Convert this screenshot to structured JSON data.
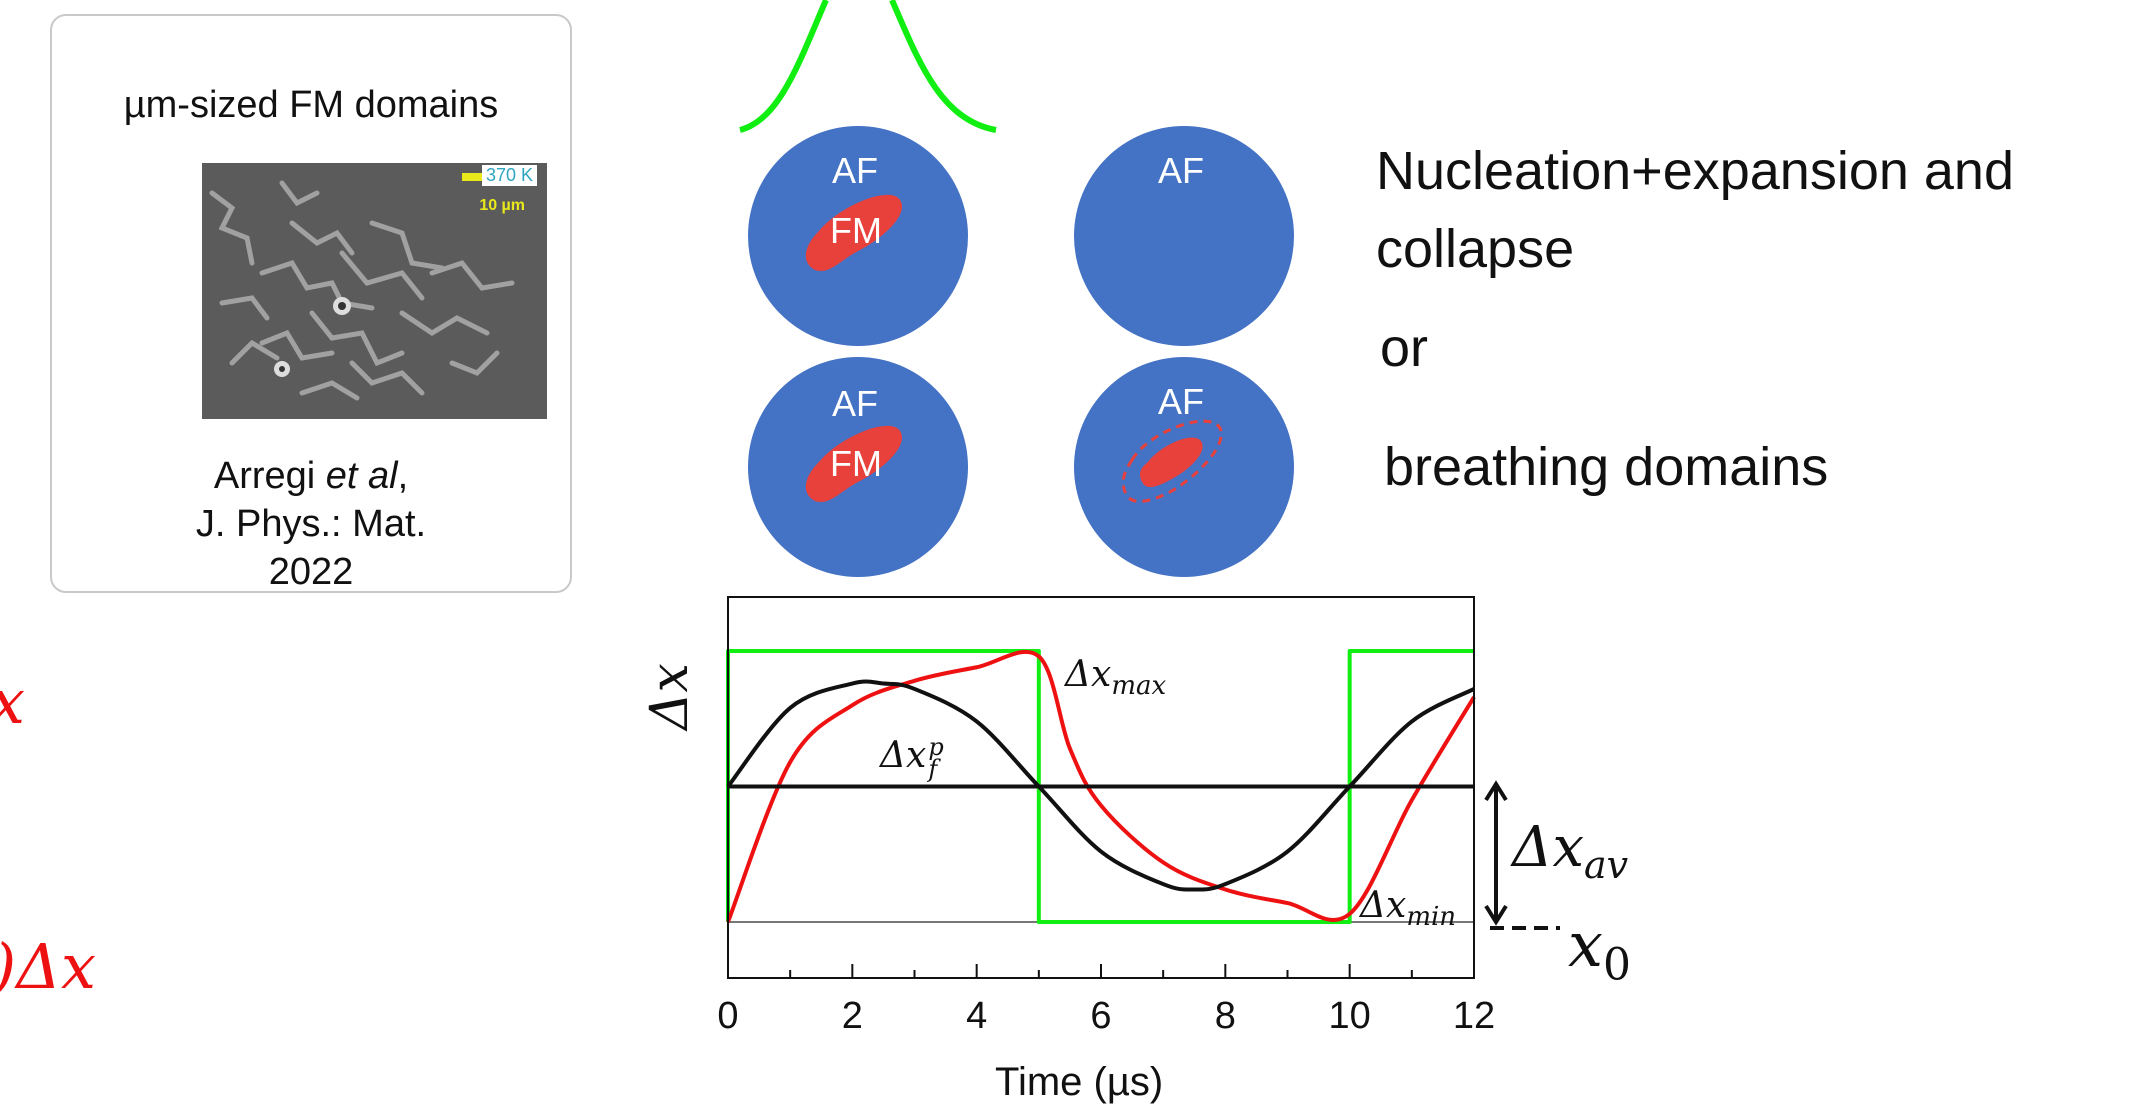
{
  "colors": {
    "disk": "#4472c4",
    "fm_domain": "#e8413c",
    "green": "#11ee11",
    "red": "#ee1111",
    "black": "#111111"
  },
  "card": {
    "title": "µm-sized FM domains",
    "scale_temp": "370 K",
    "scale_len": "10 µm",
    "citation_author": "Arregi ",
    "citation_etal": "et al",
    "citation_comma": ",",
    "citation_journal": "J. Phys.: Mat.",
    "citation_year": "2022"
  },
  "disks": {
    "af": "AF",
    "fm": "FM"
  },
  "right_text": {
    "line1": "Nucleation+expansion and",
    "line2": "collapse",
    "or": "or",
    "line3": "breathing domains"
  },
  "left_fragments": {
    "frag1": "x",
    "frag2": ")Δx"
  },
  "annotations": {
    "dx_max_base": "Δx",
    "dx_max_sub": "max",
    "dx_fp_base": "Δx",
    "dx_fp_sup": "p",
    "dx_fp_sub": "f",
    "dx_av_base": "Δx",
    "dx_av_sub": "av",
    "dx_min_base": "Δx",
    "dx_min_sub": "min",
    "x0_base": "x",
    "x0_sub": "0"
  },
  "chart_data": {
    "type": "line",
    "xlabel": "Time (µs)",
    "ylabel": "Δx",
    "xlim": [
      0,
      12
    ],
    "x_ticks": [
      0,
      2,
      4,
      6,
      8,
      10,
      12
    ],
    "y_range_note": "baseline x0 to Δx_max (arbitrary units)",
    "series": [
      {
        "name": "green",
        "color": "#11ee11",
        "x": [
          0,
          0,
          5,
          5,
          10,
          10,
          12
        ],
        "y": [
          0,
          1,
          1,
          0,
          0,
          1,
          1
        ]
      },
      {
        "name": "red",
        "color": "#ee1111",
        "x": [
          0,
          1,
          2,
          3,
          4,
          5,
          5.5,
          6,
          7,
          8,
          9,
          10,
          11,
          12
        ],
        "y": [
          0,
          0.59,
          0.8,
          0.89,
          0.94,
          0.98,
          0.64,
          0.43,
          0.22,
          0.12,
          0.07,
          0.03,
          0.45,
          0.83
        ]
      },
      {
        "name": "black",
        "color": "#111111",
        "x": [
          0,
          1,
          2,
          2.5,
          3,
          4,
          5,
          6,
          7,
          7.5,
          8,
          9,
          10,
          11,
          12
        ],
        "y": [
          0.5,
          0.79,
          0.88,
          0.88,
          0.86,
          0.74,
          0.5,
          0.26,
          0.14,
          0.12,
          0.14,
          0.26,
          0.5,
          0.74,
          0.86
        ]
      },
      {
        "name": "reference",
        "color": "#111111",
        "x": [
          0,
          12
        ],
        "y": [
          0.5,
          0.5
        ]
      }
    ]
  }
}
